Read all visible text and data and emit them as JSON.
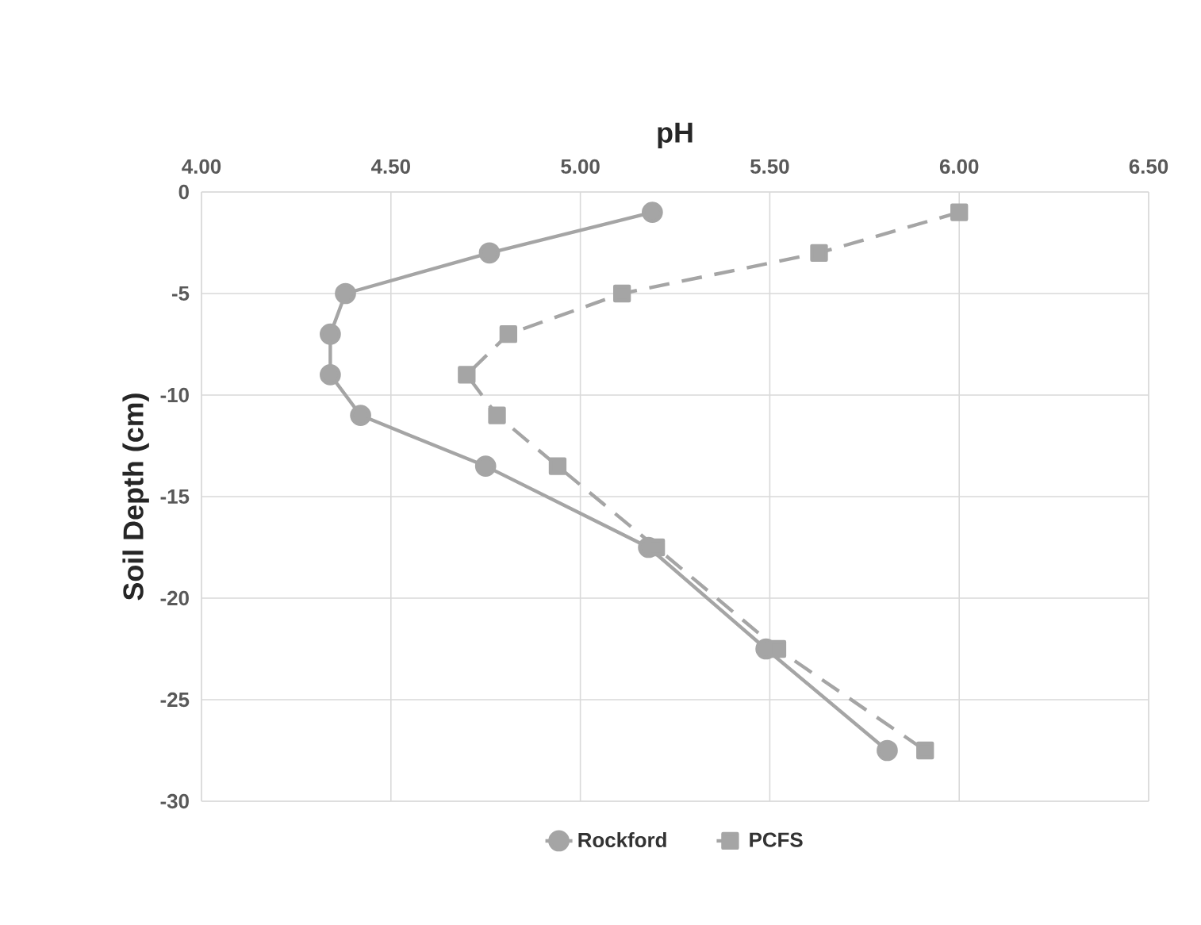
{
  "chart_data": {
    "type": "line",
    "xlabel": "pH",
    "ylabel": "Soil Depth (cm)",
    "xlim": [
      4,
      6.5
    ],
    "xticks": [
      {
        "value": 4,
        "label": "4.00"
      },
      {
        "value": 4.5,
        "label": "4.50"
      },
      {
        "value": 5,
        "label": "5.00"
      },
      {
        "value": 5.5,
        "label": "5.50"
      },
      {
        "value": 6,
        "label": "6.00"
      },
      {
        "value": 6.5,
        "label": "6.50"
      }
    ],
    "ylim": [
      -30,
      0
    ],
    "yticks": [
      -30,
      -25,
      -20,
      -15,
      -10,
      -5,
      0
    ],
    "grid": true,
    "legend": "bottom",
    "series": [
      {
        "name": "Rockford",
        "color": "#a5a5a5",
        "marker": "circle",
        "line_style": "solid",
        "x": [
          5.19,
          4.76,
          4.38,
          4.34,
          4.34,
          4.42,
          4.75,
          5.18,
          5.49,
          5.81
        ],
        "values": [
          -1,
          -3,
          -5,
          -7,
          -9,
          -11,
          -13.5,
          -17.5,
          -22.5,
          -27.5
        ]
      },
      {
        "name": "PCFS",
        "color": "#a5a5a5",
        "marker": "square",
        "line_style": "dashed",
        "x": [
          6.0,
          5.63,
          5.11,
          4.81,
          4.7,
          4.78,
          4.94,
          5.2,
          5.52,
          5.91
        ],
        "values": [
          -1,
          -3,
          -5,
          -7,
          -9,
          -11,
          -13.5,
          -17.5,
          -22.5,
          -27.5
        ]
      }
    ]
  }
}
